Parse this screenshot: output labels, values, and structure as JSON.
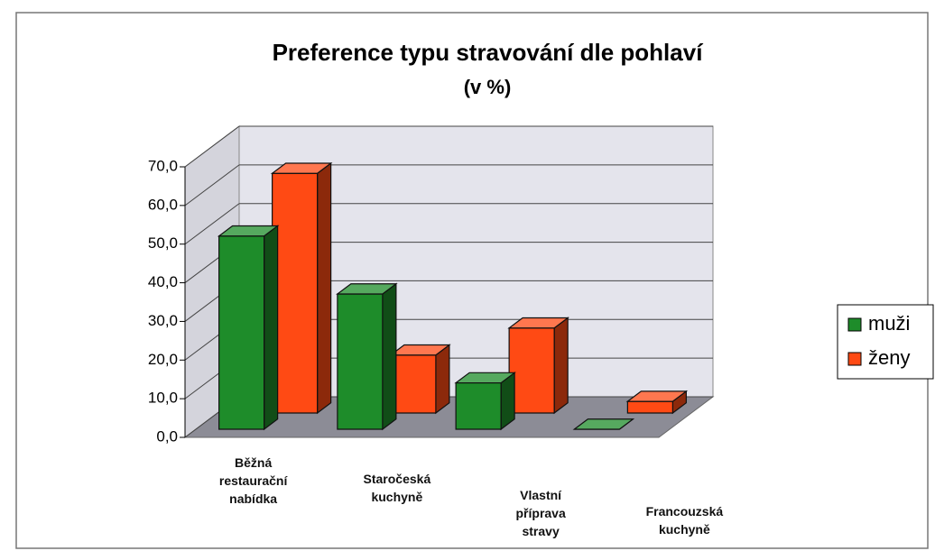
{
  "chart_data": {
    "type": "bar3d",
    "title": "Preference typu stravování dle pohlaví",
    "subtitle": "(v %)",
    "categories": [
      "Běžná restaurační nabídka",
      "Staročeská kuchyně",
      "Vlastní příprava stravy",
      "Francouzská kuchyně"
    ],
    "series": [
      {
        "name": "muži",
        "color": "#1e8c2a",
        "values": [
          50,
          35,
          12,
          0
        ]
      },
      {
        "name": "ženy",
        "color": "#ff4a14",
        "values": [
          62,
          15,
          22,
          3
        ]
      }
    ],
    "ylim": [
      0,
      70
    ],
    "yticks": [
      {
        "value": 0,
        "label": "0,0"
      },
      {
        "value": 10,
        "label": "10,0"
      },
      {
        "value": 20,
        "label": "20,0"
      },
      {
        "value": 30,
        "label": "30,0"
      },
      {
        "value": 40,
        "label": "40,0"
      },
      {
        "value": 50,
        "label": "50,0"
      },
      {
        "value": 60,
        "label": "60,0"
      },
      {
        "value": 70,
        "label": "70,0"
      }
    ],
    "grid": true,
    "legend": "right"
  }
}
